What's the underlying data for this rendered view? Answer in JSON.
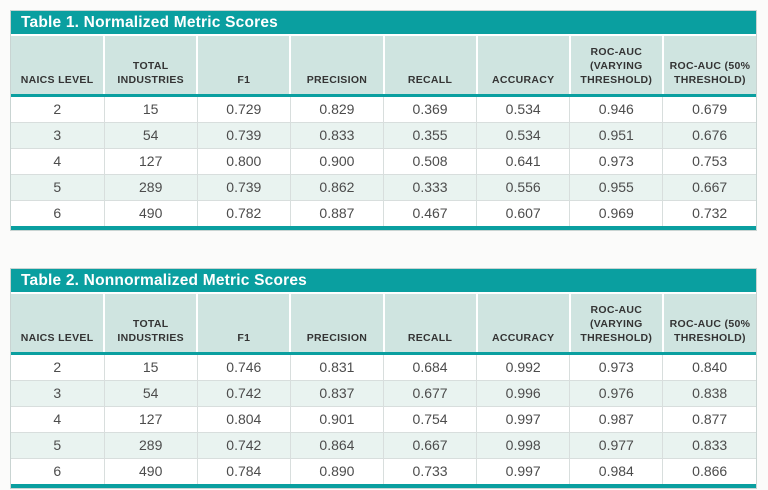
{
  "colors": {
    "teal": "#0a9fa0",
    "header_bg": "#cfe4e0",
    "alt_row_bg": "#e9f3f0",
    "grid_line": "#d8dedd",
    "outer_border": "#c9d4d2",
    "header_text": "#343434",
    "data_text": "#4c4c4c",
    "title_text": "#ffffff",
    "page_bg": "#fbfbfa"
  },
  "tables": [
    {
      "title": "Table 1. Normalized Metric Scores",
      "columns": [
        "NAICS LEVEL",
        "TOTAL INDUSTRIES",
        "F1",
        "PRECISION",
        "RECALL",
        "ACCURACY",
        "ROC-AUC (VARYING THRESHOLD)",
        "ROC-AUC (50% THRESHOLD)"
      ],
      "rows": [
        [
          "2",
          "15",
          "0.729",
          "0.829",
          "0.369",
          "0.534",
          "0.946",
          "0.679"
        ],
        [
          "3",
          "54",
          "0.739",
          "0.833",
          "0.355",
          "0.534",
          "0.951",
          "0.676"
        ],
        [
          "4",
          "127",
          "0.800",
          "0.900",
          "0.508",
          "0.641",
          "0.973",
          "0.753"
        ],
        [
          "5",
          "289",
          "0.739",
          "0.862",
          "0.333",
          "0.556",
          "0.955",
          "0.667"
        ],
        [
          "6",
          "490",
          "0.782",
          "0.887",
          "0.467",
          "0.607",
          "0.969",
          "0.732"
        ]
      ]
    },
    {
      "title": "Table 2. Nonnormalized Metric Scores",
      "columns": [
        "NAICS LEVEL",
        "TOTAL INDUSTRIES",
        "F1",
        "PRECISION",
        "RECALL",
        "ACCURACY",
        "ROC-AUC (VARYING THRESHOLD)",
        "ROC-AUC (50% THRESHOLD)"
      ],
      "rows": [
        [
          "2",
          "15",
          "0.746",
          "0.831",
          "0.684",
          "0.992",
          "0.973",
          "0.840"
        ],
        [
          "3",
          "54",
          "0.742",
          "0.837",
          "0.677",
          "0.996",
          "0.976",
          "0.838"
        ],
        [
          "4",
          "127",
          "0.804",
          "0.901",
          "0.754",
          "0.997",
          "0.987",
          "0.877"
        ],
        [
          "5",
          "289",
          "0.742",
          "0.864",
          "0.667",
          "0.998",
          "0.977",
          "0.833"
        ],
        [
          "6",
          "490",
          "0.784",
          "0.890",
          "0.733",
          "0.997",
          "0.984",
          "0.866"
        ]
      ]
    }
  ]
}
